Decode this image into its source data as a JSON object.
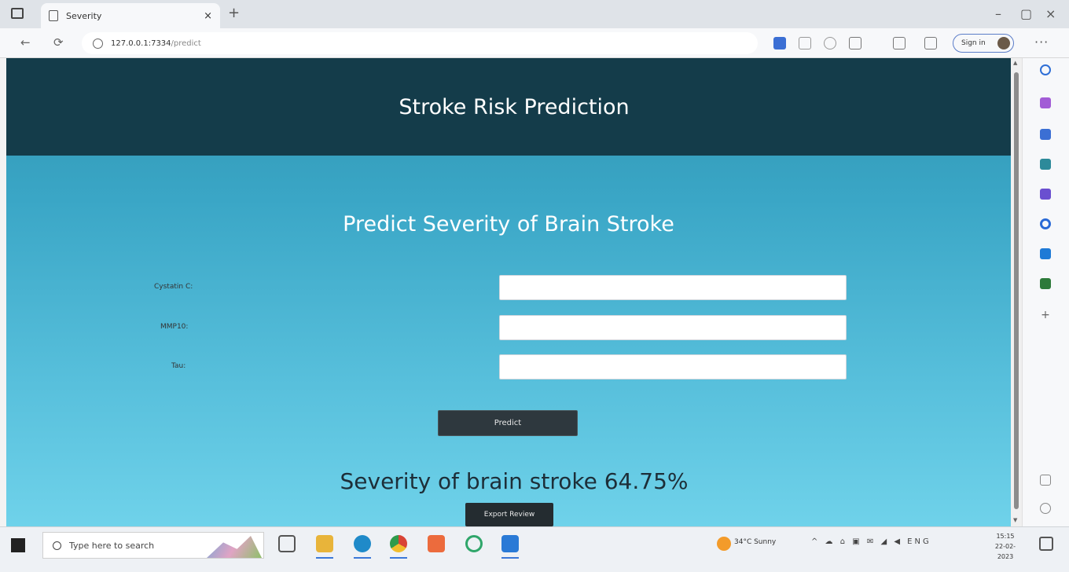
{
  "browser": {
    "tab_title": "Severity",
    "tab_close": "×",
    "new_tab": "+",
    "window_controls": [
      "–",
      "▢",
      "×"
    ],
    "nav_back": "←",
    "nav_refresh": "⟳",
    "url_host": "127.0.0.1:7334",
    "url_path": "/predict",
    "sign_in_label": "Sign in",
    "more_label": "···"
  },
  "page": {
    "header_title": "Stroke Risk Prediction",
    "form_title": "Predict Severity of Brain Stroke",
    "fields": [
      {
        "label": "Cystatin C:",
        "value": ""
      },
      {
        "label": "MMP10:",
        "value": ""
      },
      {
        "label": "Tau:",
        "value": ""
      }
    ],
    "predict_button": "Predict",
    "result_text": "Severity of brain stroke 64.75%",
    "report_button": "Export Review"
  },
  "taskbar": {
    "search_placeholder": "Type here to search",
    "weather": "34°C  Sunny",
    "tray": "^ ☁ ⌂ ▣ ✉ ◢ ◀ ENG",
    "time": "15:15",
    "date": "22-02-2023"
  },
  "colors": {
    "header_bg": "#143c4a",
    "page_gradient_top": "#2f94b0",
    "page_gradient_bottom": "#6fd2ea",
    "button_bg": "#2e383e"
  }
}
